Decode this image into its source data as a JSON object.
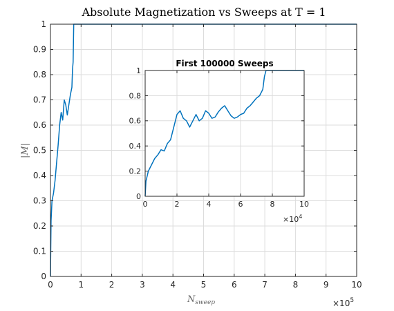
{
  "chart_data": [
    {
      "type": "line",
      "title": "Absolute Magnetization vs Sweeps at T = 1",
      "xlabel_main": "N",
      "xlabel_sub": "sweep",
      "ylabel": "|M|",
      "xlim": [
        0,
        10
      ],
      "ylim": [
        0,
        1
      ],
      "x_exponent_base": "×10",
      "x_exponent": "5",
      "xticks": [
        "0",
        "1",
        "2",
        "3",
        "4",
        "5",
        "6",
        "7",
        "8",
        "9",
        "10"
      ],
      "yticks": [
        "0",
        "0.1",
        "0.2",
        "0.3",
        "0.4",
        "0.5",
        "0.6",
        "0.7",
        "0.8",
        "0.9",
        "1"
      ],
      "grid": true,
      "series": [
        {
          "color": "#0072bd",
          "x": [
            0,
            0.02,
            0.05,
            0.1,
            0.15,
            0.2,
            0.25,
            0.3,
            0.35,
            0.4,
            0.45,
            0.5,
            0.55,
            0.6,
            0.65,
            0.7,
            0.72,
            0.74,
            0.76,
            1,
            2,
            3,
            4,
            5,
            6,
            7,
            8,
            9,
            10
          ],
          "y": [
            0,
            0.22,
            0.3,
            0.33,
            0.38,
            0.45,
            0.52,
            0.6,
            0.65,
            0.62,
            0.7,
            0.68,
            0.64,
            0.68,
            0.72,
            0.75,
            0.82,
            0.85,
            1,
            1,
            1,
            1,
            1,
            1,
            1,
            1,
            1,
            1,
            1
          ]
        }
      ]
    },
    {
      "type": "line",
      "title": "First 100000 Sweeps",
      "xlim": [
        0,
        10
      ],
      "ylim": [
        0,
        1
      ],
      "x_exponent_base": "×10",
      "x_exponent": "4",
      "xticks": [
        "0",
        "2",
        "4",
        "6",
        "8",
        "10"
      ],
      "yticks": [
        "0",
        "0.2",
        "0.4",
        "0.6",
        "0.8",
        "1"
      ],
      "grid": true,
      "series": [
        {
          "color": "#0072bd",
          "x": [
            0,
            0.05,
            0.2,
            0.4,
            0.6,
            0.8,
            1.0,
            1.2,
            1.4,
            1.6,
            1.8,
            2.0,
            2.2,
            2.4,
            2.6,
            2.8,
            3.0,
            3.2,
            3.4,
            3.6,
            3.8,
            4.0,
            4.2,
            4.4,
            4.6,
            4.8,
            5.0,
            5.2,
            5.4,
            5.6,
            5.8,
            6.0,
            6.2,
            6.4,
            6.6,
            6.8,
            7.0,
            7.2,
            7.4,
            7.5,
            7.6,
            8,
            9,
            10
          ],
          "y": [
            0,
            0.12,
            0.2,
            0.25,
            0.3,
            0.33,
            0.37,
            0.36,
            0.42,
            0.45,
            0.55,
            0.65,
            0.68,
            0.62,
            0.6,
            0.55,
            0.6,
            0.65,
            0.6,
            0.62,
            0.68,
            0.66,
            0.62,
            0.63,
            0.67,
            0.7,
            0.72,
            0.68,
            0.64,
            0.62,
            0.63,
            0.65,
            0.66,
            0.7,
            0.72,
            0.75,
            0.78,
            0.8,
            0.85,
            0.95,
            1,
            1,
            1,
            1
          ]
        }
      ]
    }
  ]
}
